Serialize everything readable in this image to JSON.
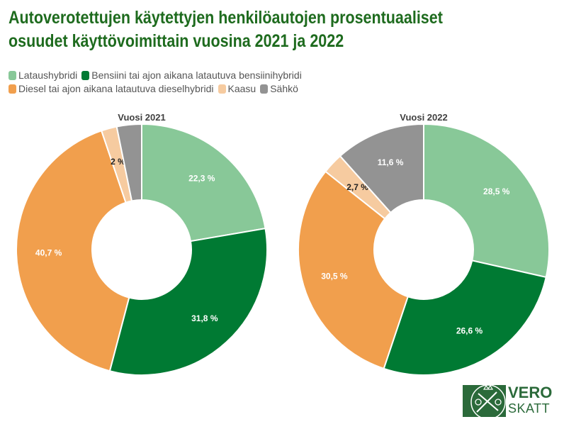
{
  "title_line1": "Autoverotettujen käytettyjen henkilöautojen prosentuaaliset",
  "title_line2": "osuudet käyttövoimittain vuosina 2021 ja 2022",
  "logo": {
    "line1": "VERO",
    "line2": "SKATT"
  },
  "colors": {
    "Lataushybridi": "#88c898",
    "Bensiini": "#007a33",
    "Diesel": "#f19f4d",
    "Kaasu": "#f6cba0",
    "Sahko": "#939393",
    "title": "#1e6b1e"
  },
  "chart_data": [
    {
      "type": "pie",
      "donut": true,
      "title": "Vuosi 2021",
      "legend": [
        "Lataushybridi",
        "Bensiini tai ajon aikana latautuva bensiinihybridi",
        "Diesel tai ajon aikana latautuva dieselhybridi",
        "Kaasu",
        "Sähkö"
      ],
      "categories": [
        "Lataushybridi",
        "Bensiini tai ajon aikana latautuva bensiinihybridi",
        "Diesel tai ajon aikana latautuva dieselhybridi",
        "Kaasu",
        "Sähkö"
      ],
      "values": [
        22.3,
        31.8,
        40.7,
        2.0,
        3.2
      ],
      "labels": [
        "22,3 %",
        "31,8 %",
        "40,7 %",
        "2 %",
        ""
      ],
      "legend_position": "top-left"
    },
    {
      "type": "pie",
      "donut": true,
      "title": "Vuosi 2022",
      "categories": [
        "Lataushybridi",
        "Bensiini tai ajon aikana latautuva bensiinihybridi",
        "Diesel tai ajon aikana latautuva dieselhybridi",
        "Kaasu",
        "Sähkö"
      ],
      "values": [
        28.5,
        26.6,
        30.5,
        2.7,
        11.6
      ],
      "labels": [
        "28,5 %",
        "26,6 %",
        "30,5 %",
        "2,7 %",
        "11,6 %"
      ],
      "legend_position": "top-left"
    }
  ]
}
